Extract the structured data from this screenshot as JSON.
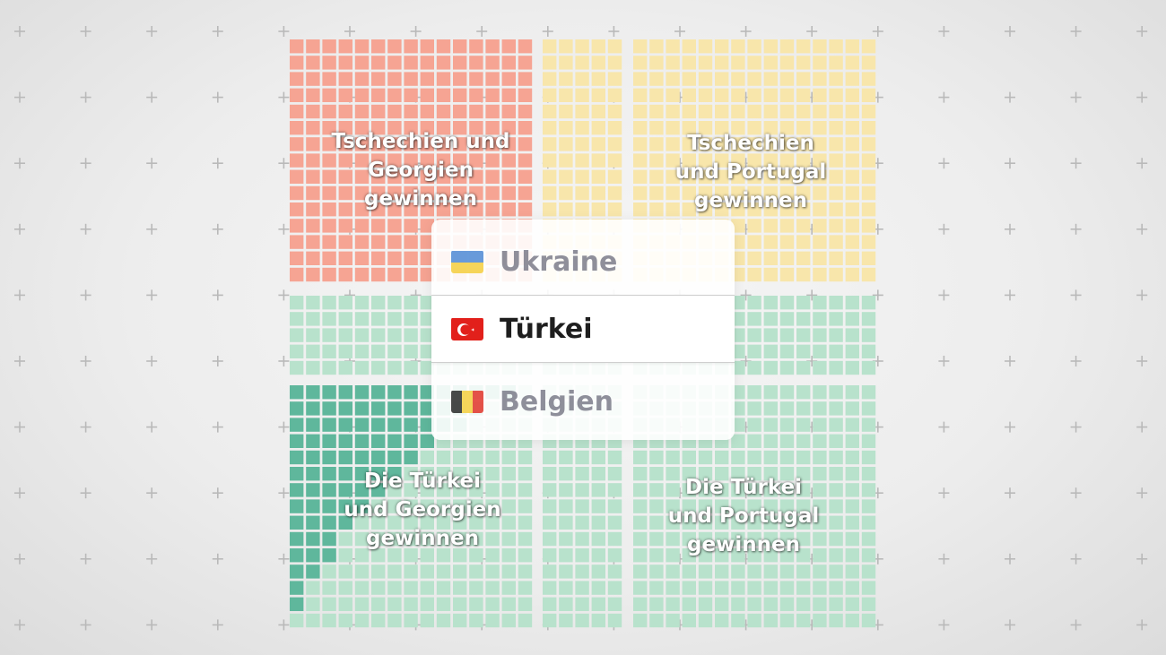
{
  "colors": {
    "salmon": "#f6a493",
    "yellow": "#f8e6ab",
    "mint": "#b8e2cc",
    "teal": "#5fb79c",
    "plus": "#b9b9b9"
  },
  "quadrants": {
    "top_left": {
      "label": [
        "Tschechien und",
        "Georgien",
        "gewinnen"
      ]
    },
    "top_right": {
      "label": [
        "Tschechien",
        "und Portugal",
        "gewinnen"
      ]
    },
    "bottom_left": {
      "label": [
        "Die Türkei",
        "und Georgien",
        "gewinnen"
      ]
    },
    "bottom_right": {
      "label": [
        "Die Türkei",
        "und Portugal",
        "gewinnen"
      ]
    }
  },
  "picker": {
    "options": [
      {
        "name": "Ukraine",
        "flag": "ukraine-flag-icon",
        "state": "faded"
      },
      {
        "name": "Türkei",
        "flag": "turkey-flag-icon",
        "state": "selected"
      },
      {
        "name": "Belgien",
        "flag": "belgium-flag-icon",
        "state": "faded"
      }
    ]
  }
}
